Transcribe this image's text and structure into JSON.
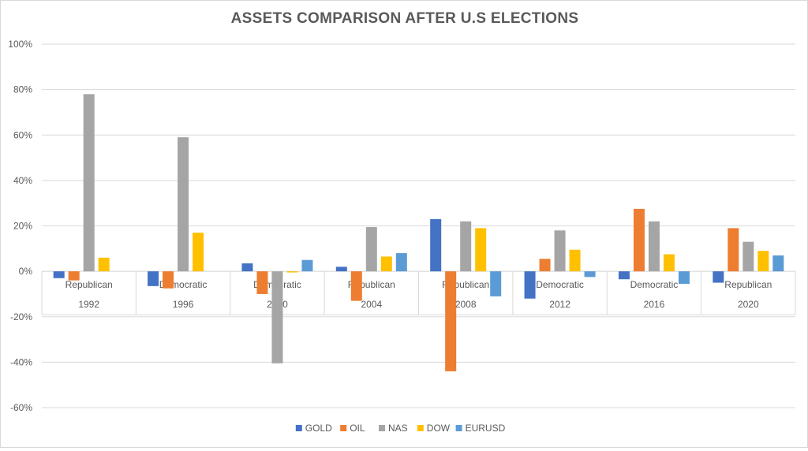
{
  "chart_data": {
    "type": "bar",
    "title": "ASSETS COMPARISON AFTER U.S ELECTIONS",
    "categories": [
      {
        "year": "1992",
        "party": "Republican"
      },
      {
        "year": "1996",
        "party": "Democratic"
      },
      {
        "year": "2000",
        "party": "Democratic"
      },
      {
        "year": "2004",
        "party": "Republican"
      },
      {
        "year": "2008",
        "party": "Republican"
      },
      {
        "year": "2012",
        "party": "Democratic"
      },
      {
        "year": "2016",
        "party": "Democratic"
      },
      {
        "year": "2020",
        "party": "Republican"
      }
    ],
    "series": [
      {
        "name": "GOLD",
        "color": "#4472c4",
        "values": [
          -3,
          -6.5,
          3.5,
          2,
          23,
          -12,
          -3.5,
          -5
        ]
      },
      {
        "name": "OIL",
        "color": "#ed7d31",
        "values": [
          -4,
          -7.5,
          -10,
          -13,
          -44,
          5.5,
          27.5,
          19
        ]
      },
      {
        "name": "NAS",
        "color": "#a5a5a5",
        "values": [
          78,
          59,
          -40.5,
          19.5,
          22,
          18,
          22,
          13
        ]
      },
      {
        "name": "DOW",
        "color": "#ffc000",
        "values": [
          6,
          17,
          -0.5,
          6.5,
          19,
          9.5,
          7.5,
          9
        ]
      },
      {
        "name": "EURUSD",
        "color": "#5b9bd5",
        "values": [
          0,
          0,
          5,
          8,
          -11,
          -2.5,
          -5.5,
          7
        ]
      }
    ],
    "y_ticks": [
      "100%",
      "80%",
      "60%",
      "40%",
      "20%",
      "0%",
      "-20%",
      "-40%",
      "-60%"
    ],
    "ylim": [
      -60,
      100
    ],
    "grid": true,
    "legend_position": "bottom"
  }
}
